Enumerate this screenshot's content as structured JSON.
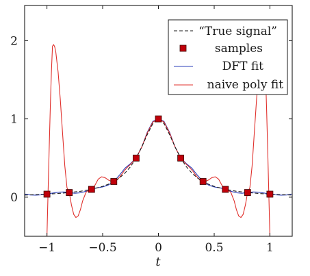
{
  "chart_data": {
    "type": "line",
    "xlabel": "t",
    "ylabel": "",
    "xlim": [
      -1.2,
      1.2
    ],
    "ylim": [
      -0.5,
      2.45
    ],
    "grid": false,
    "legend_position": "top-right",
    "x_ticks": [
      {
        "value": -1,
        "label": "−1"
      },
      {
        "value": -0.5,
        "label": "−0.5"
      },
      {
        "value": 0,
        "label": "0"
      },
      {
        "value": 0.5,
        "label": "0.5"
      },
      {
        "value": 1,
        "label": "1"
      }
    ],
    "y_ticks": [
      {
        "value": 0,
        "label": "0"
      },
      {
        "value": 1,
        "label": "1"
      },
      {
        "value": 2,
        "label": "2"
      }
    ],
    "series": [
      {
        "name": "“True signal”",
        "style": "dashed",
        "color": "#1a1a1a",
        "x": [
          -1.2,
          -1.1,
          -1.0,
          -0.9,
          -0.8,
          -0.7,
          -0.6,
          -0.5,
          -0.45,
          -0.4,
          -0.35,
          -0.3,
          -0.25,
          -0.2,
          -0.15,
          -0.1,
          -0.05,
          0,
          0.05,
          0.1,
          0.15,
          0.2,
          0.25,
          0.3,
          0.35,
          0.4,
          0.45,
          0.5,
          0.6,
          0.7,
          0.8,
          0.9,
          1.0,
          1.1,
          1.2
        ],
        "y": [
          0.027,
          0.032,
          0.038,
          0.047,
          0.059,
          0.075,
          0.1,
          0.138,
          0.165,
          0.2,
          0.246,
          0.308,
          0.39,
          0.5,
          0.64,
          0.8,
          0.941,
          1.0,
          0.941,
          0.8,
          0.64,
          0.5,
          0.39,
          0.308,
          0.246,
          0.2,
          0.165,
          0.138,
          0.1,
          0.075,
          0.059,
          0.047,
          0.038,
          0.032,
          0.027
        ]
      },
      {
        "name": "samples",
        "style": "markers",
        "color": "#c0000a",
        "x": [
          -1.0,
          -0.8,
          -0.6,
          -0.4,
          -0.2,
          0.0,
          0.2,
          0.4,
          0.6,
          0.8,
          1.0
        ],
        "y": [
          0.038,
          0.059,
          0.1,
          0.2,
          0.5,
          1.0,
          0.5,
          0.2,
          0.1,
          0.059,
          0.038
        ]
      },
      {
        "name": "DFT fit",
        "style": "solid",
        "color": "#2b3fb8",
        "x": [
          -1.2,
          -1.15,
          -1.1,
          -1.05,
          -1.0,
          -0.95,
          -0.9,
          -0.85,
          -0.8,
          -0.75,
          -0.7,
          -0.65,
          -0.6,
          -0.55,
          -0.5,
          -0.45,
          -0.4,
          -0.35,
          -0.3,
          -0.25,
          -0.2,
          -0.15,
          -0.1,
          -0.05,
          0,
          0.05,
          0.1,
          0.15,
          0.2,
          0.25,
          0.3,
          0.35,
          0.4,
          0.45,
          0.5,
          0.55,
          0.6,
          0.65,
          0.7,
          0.75,
          0.8,
          0.85,
          0.9,
          0.95,
          1.0,
          1.05,
          1.1,
          1.15,
          1.2
        ],
        "y": [
          0.04,
          0.028,
          0.026,
          0.03,
          0.038,
          0.052,
          0.064,
          0.066,
          0.059,
          0.05,
          0.056,
          0.075,
          0.1,
          0.12,
          0.13,
          0.155,
          0.2,
          0.28,
          0.37,
          0.43,
          0.5,
          0.64,
          0.83,
          0.97,
          1.0,
          0.97,
          0.83,
          0.64,
          0.5,
          0.43,
          0.37,
          0.28,
          0.2,
          0.155,
          0.13,
          0.12,
          0.1,
          0.075,
          0.056,
          0.05,
          0.059,
          0.066,
          0.064,
          0.052,
          0.038,
          0.03,
          0.026,
          0.028,
          0.04
        ]
      },
      {
        "name": "naive poly fit",
        "style": "solid",
        "color": "#e0302c",
        "x": [
          -1.0,
          -0.99,
          -0.98,
          -0.97,
          -0.96,
          -0.95,
          -0.94,
          -0.93,
          -0.92,
          -0.9,
          -0.88,
          -0.86,
          -0.84,
          -0.82,
          -0.8,
          -0.78,
          -0.76,
          -0.74,
          -0.72,
          -0.7,
          -0.68,
          -0.65,
          -0.62,
          -0.6,
          -0.57,
          -0.54,
          -0.51,
          -0.48,
          -0.45,
          -0.42,
          -0.4,
          -0.37,
          -0.34,
          -0.31,
          -0.28,
          -0.25,
          -0.2,
          -0.15,
          -0.1,
          -0.05,
          0,
          0.05,
          0.1,
          0.15,
          0.2,
          0.25,
          0.28,
          0.31,
          0.34,
          0.37,
          0.4,
          0.42,
          0.45,
          0.48,
          0.51,
          0.54,
          0.57,
          0.6,
          0.62,
          0.65,
          0.68,
          0.7,
          0.72,
          0.74,
          0.76,
          0.78,
          0.8,
          0.82,
          0.84,
          0.86,
          0.88,
          0.9,
          0.92,
          0.93,
          0.94,
          0.95,
          0.96,
          0.97,
          0.98,
          0.99,
          1.0
        ],
        "y": [
          -0.5,
          0.05,
          0.6,
          1.15,
          1.6,
          1.93,
          1.95,
          1.92,
          1.85,
          1.6,
          1.25,
          0.82,
          0.4,
          0.12,
          0.059,
          -0.1,
          -0.22,
          -0.26,
          -0.24,
          -0.16,
          -0.05,
          0.06,
          0.1,
          0.1,
          0.15,
          0.23,
          0.26,
          0.25,
          0.22,
          0.2,
          0.2,
          0.22,
          0.27,
          0.33,
          0.38,
          0.42,
          0.5,
          0.64,
          0.82,
          0.96,
          1.0,
          0.96,
          0.82,
          0.64,
          0.5,
          0.42,
          0.38,
          0.33,
          0.27,
          0.22,
          0.2,
          0.2,
          0.22,
          0.25,
          0.26,
          0.23,
          0.15,
          0.1,
          0.1,
          0.06,
          -0.05,
          -0.16,
          -0.24,
          -0.26,
          -0.22,
          -0.1,
          0.059,
          0.12,
          0.4,
          0.82,
          1.25,
          1.6,
          1.85,
          1.92,
          1.95,
          1.93,
          1.6,
          1.15,
          0.6,
          0.05,
          -0.5
        ]
      }
    ]
  }
}
